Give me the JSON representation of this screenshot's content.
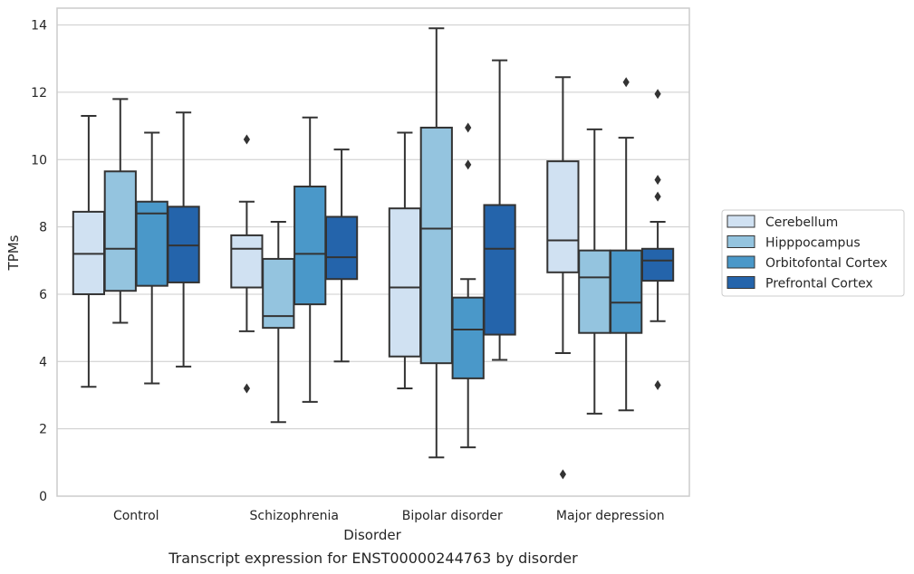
{
  "chart_data": {
    "type": "box",
    "caption": "Transcript expression for ENST00000244763 by disorder",
    "xlabel": "Disorder",
    "ylabel": "TPMs",
    "ylim": [
      0,
      14.5
    ],
    "yticks": [
      "0",
      "2",
      "4",
      "6",
      "8",
      "10",
      "12",
      "14"
    ],
    "grid": true,
    "legend_position": "right",
    "categories": [
      "Control",
      "Schizophrenia",
      "Bipolar disorder",
      "Major depression"
    ],
    "series": [
      {
        "name": "Cerebellum",
        "color": "#d0e1f2",
        "boxes": [
          {
            "whislo": 3.25,
            "q1": 6.0,
            "med": 7.2,
            "q3": 8.45,
            "whishi": 11.3,
            "fliers": []
          },
          {
            "whislo": 4.9,
            "q1": 6.2,
            "med": 7.35,
            "q3": 7.75,
            "whishi": 8.75,
            "fliers": [
              3.2,
              10.6
            ]
          },
          {
            "whislo": 3.2,
            "q1": 4.15,
            "med": 6.2,
            "q3": 8.55,
            "whishi": 10.8,
            "fliers": []
          },
          {
            "whislo": 4.25,
            "q1": 6.65,
            "med": 7.6,
            "q3": 9.95,
            "whishi": 12.45,
            "fliers": [
              0.65
            ]
          }
        ]
      },
      {
        "name": "Hipppocampus",
        "color": "#94c4df",
        "boxes": [
          {
            "whislo": 5.15,
            "q1": 6.1,
            "med": 7.35,
            "q3": 9.65,
            "whishi": 11.8,
            "fliers": []
          },
          {
            "whislo": 2.2,
            "q1": 5.0,
            "med": 5.35,
            "q3": 7.05,
            "whishi": 8.15,
            "fliers": []
          },
          {
            "whislo": 1.15,
            "q1": 3.95,
            "med": 7.95,
            "q3": 10.95,
            "whishi": 13.9,
            "fliers": []
          },
          {
            "whislo": 2.45,
            "q1": 4.85,
            "med": 6.5,
            "q3": 7.3,
            "whishi": 10.9,
            "fliers": []
          }
        ]
      },
      {
        "name": "Orbitofontal Cortex",
        "color": "#4a98c9",
        "boxes": [
          {
            "whislo": 3.35,
            "q1": 6.25,
            "med": 8.4,
            "q3": 8.75,
            "whishi": 10.8,
            "fliers": []
          },
          {
            "whislo": 2.8,
            "q1": 5.7,
            "med": 7.2,
            "q3": 9.2,
            "whishi": 11.25,
            "fliers": []
          },
          {
            "whislo": 1.45,
            "q1": 3.5,
            "med": 4.95,
            "q3": 5.9,
            "whishi": 6.45,
            "fliers": [
              9.85,
              10.95
            ]
          },
          {
            "whislo": 2.55,
            "q1": 4.85,
            "med": 5.75,
            "q3": 7.3,
            "whishi": 10.65,
            "fliers": [
              12.3
            ]
          }
        ]
      },
      {
        "name": "Prefrontal Cortex",
        "color": "#2464ab",
        "boxes": [
          {
            "whislo": 3.85,
            "q1": 6.35,
            "med": 7.45,
            "q3": 8.6,
            "whishi": 11.4,
            "fliers": []
          },
          {
            "whislo": 4.0,
            "q1": 6.45,
            "med": 7.1,
            "q3": 8.3,
            "whishi": 10.3,
            "fliers": []
          },
          {
            "whislo": 4.05,
            "q1": 4.8,
            "med": 7.35,
            "q3": 8.65,
            "whishi": 12.95,
            "fliers": []
          },
          {
            "whislo": 5.2,
            "q1": 6.4,
            "med": 7.0,
            "q3": 7.35,
            "whishi": 8.15,
            "fliers": [
              3.3,
              8.9,
              9.4,
              11.95
            ]
          }
        ]
      }
    ]
  }
}
